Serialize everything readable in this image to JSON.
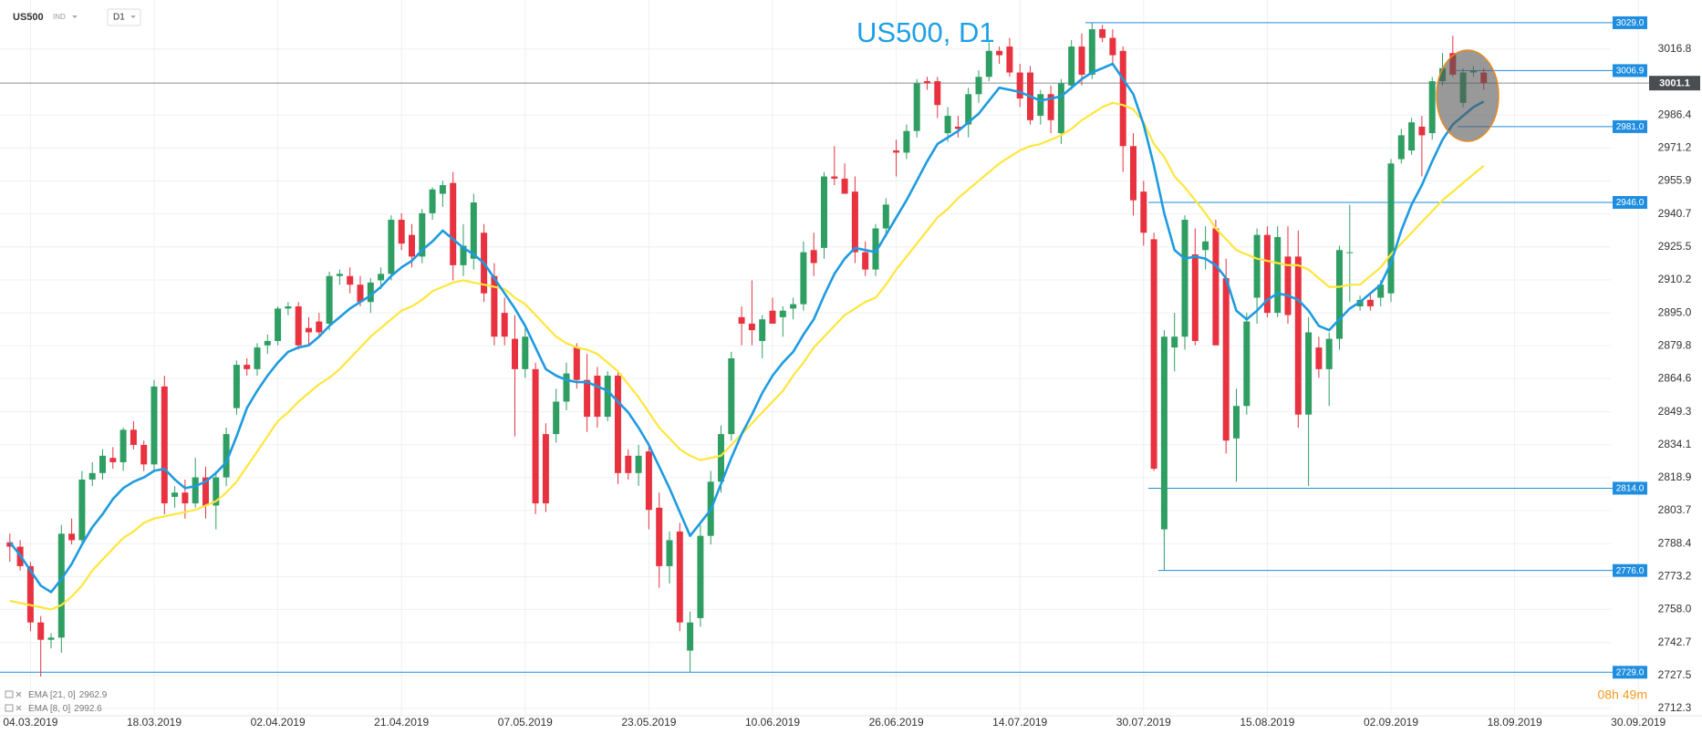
{
  "toolbar": {
    "symbol": "US500",
    "market": "IND",
    "interval": "D1"
  },
  "chart_data": {
    "type": "candlestick",
    "title": "US500, D1",
    "categories": [
      null,
      null,
      "04.03.2019",
      null,
      null,
      null,
      null,
      null,
      null,
      null,
      null,
      null,
      null,
      null,
      "18.03.2019",
      null,
      null,
      null,
      null,
      null,
      null,
      null,
      null,
      null,
      null,
      null,
      "02.04.2019",
      null,
      null,
      null,
      null,
      null,
      null,
      null,
      null,
      null,
      null,
      null,
      "21.04.2019",
      null,
      null,
      null,
      null,
      null,
      null,
      null,
      null,
      null,
      null,
      null,
      "07.05.2019",
      null,
      null,
      null,
      null,
      null,
      null,
      null,
      null,
      null,
      null,
      null,
      "23.05.2019",
      null,
      null,
      null,
      null,
      null,
      null,
      null,
      null,
      null,
      null,
      null,
      "10.06.2019",
      null,
      null,
      null,
      null,
      null,
      null,
      null,
      null,
      null,
      null,
      null,
      "26.06.2019",
      null,
      null,
      null,
      null,
      null,
      null,
      null,
      null,
      null,
      null,
      null,
      "14.07.2019",
      null,
      null,
      null,
      null,
      null,
      null,
      null,
      null,
      null,
      null,
      null,
      "30.07.2019",
      null,
      null,
      null,
      null,
      null,
      null,
      null,
      null,
      null,
      null,
      null,
      "15.08.2019",
      null,
      null,
      null,
      null,
      null,
      null,
      null,
      null,
      null,
      null,
      null,
      "02.09.2019",
      null,
      null,
      null,
      null,
      null,
      null,
      null,
      null,
      null,
      null,
      null,
      "18.09.2019",
      null,
      null,
      null,
      null,
      null,
      null,
      null,
      null,
      null,
      null,
      null,
      "30.09.2019"
    ],
    "open": [
      2789,
      2787,
      2778,
      2752,
      2744,
      2745,
      2793,
      2790,
      2818,
      2821,
      2828,
      2826,
      2841,
      2834,
      2825,
      2861,
      2810,
      2812,
      2807,
      2819,
      2806,
      2819,
      2851,
      2871,
      2869,
      2880,
      2882,
      2897,
      2898,
      2888,
      2891,
      2890,
      2912,
      2912,
      2908,
      2900,
      2910,
      2913,
      2938,
      2931,
      2921,
      2941,
      2950,
      2955,
      2917,
      2920,
      2932,
      2912,
      2895,
      2883,
      2869,
      2869,
      2839,
      2839,
      2854,
      2879,
      2864,
      2866,
      2847,
      2866,
      2829,
      2821,
      2831,
      2805,
      2778,
      2794,
      2739,
      2754,
      2792,
      2817,
      2839,
      2893,
      2890,
      2882,
      2896,
      2893,
      2897,
      2899,
      2924,
      2925,
      2958,
      2957,
      2951,
      2923,
      2915,
      2934,
      2970,
      2969,
      2979,
      3002,
      3002,
      2978,
      2981,
      2982,
      2996,
      3004,
      3016,
      3018,
      3006,
      3006,
      2986,
      2996,
      2978,
      3000,
      3018,
      3005,
      3026,
      3022,
      3016,
      2972,
      2951,
      2929,
      2795,
      2879,
      2884,
      2922,
      2924,
      2934,
      2911,
      2837,
      2852,
      2902,
      2931,
      2895,
      2921,
      2921,
      2848,
      2879,
      2869,
      2883,
      2923,
      2898,
      2901,
      2902,
      2904,
      2966,
      2970,
      2981,
      2978,
      3002,
      3015,
      2992,
      3006,
      3006,
      null,
      null,
      null,
      null,
      null,
      null,
      null,
      null,
      null,
      null,
      null,
      null,
      null,
      null,
      null
    ],
    "high": [
      2793,
      2790,
      2780,
      2755,
      2747,
      2797,
      2800,
      2822,
      2826,
      2832,
      2833,
      2842,
      2845,
      2836,
      2864,
      2866,
      2815,
      2818,
      2828,
      2824,
      2822,
      2842,
      2873,
      2874,
      2881,
      2885,
      2898,
      2900,
      2900,
      2893,
      2895,
      2914,
      2915,
      2916,
      2912,
      2911,
      2916,
      2940,
      2941,
      2936,
      2943,
      2953,
      2956,
      2960,
      2936,
      2950,
      2936,
      2918,
      2902,
      2894,
      2890,
      2872,
      2844,
      2860,
      2872,
      2881,
      2876,
      2870,
      2868,
      2868,
      2832,
      2834,
      2835,
      2812,
      2794,
      2798,
      2757,
      2797,
      2822,
      2843,
      2877,
      2898,
      2910,
      2894,
      2902,
      2898,
      2902,
      2928,
      2932,
      2960,
      2972,
      2964,
      2958,
      2928,
      2936,
      2948,
      2975,
      2982,
      3003,
      3004,
      3004,
      2990,
      2986,
      2999,
      3007,
      3020,
      3018,
      3022,
      3010,
      3009,
      2998,
      3000,
      3003,
      3021,
      3024,
      3029,
      3028,
      3026,
      3018,
      2978,
      2956,
      2932,
      2887,
      2895,
      2940,
      2934,
      2935,
      2938,
      2920,
      2860,
      2895,
      2934,
      2935,
      2935,
      2935,
      2933,
      2893,
      2884,
      2886,
      2926,
      2945,
      2903,
      2904,
      2910,
      2966,
      2980,
      2985,
      2986,
      3004,
      3015,
      3023,
      3008,
      3009,
      3008,
      null,
      null,
      null,
      null,
      null,
      null,
      null,
      null,
      null,
      null,
      null,
      null,
      null,
      null,
      null
    ],
    "low": [
      2780,
      2776,
      2748,
      2727,
      2740,
      2738,
      2788,
      2788,
      2815,
      2818,
      2823,
      2822,
      2832,
      2822,
      2822,
      2802,
      2805,
      2800,
      2805,
      2800,
      2795,
      2815,
      2848,
      2866,
      2866,
      2876,
      2880,
      2894,
      2878,
      2880,
      2884,
      2887,
      2908,
      2904,
      2898,
      2895,
      2906,
      2910,
      2924,
      2916,
      2918,
      2938,
      2944,
      2910,
      2912,
      2915,
      2900,
      2880,
      2880,
      2838,
      2865,
      2802,
      2803,
      2835,
      2850,
      2860,
      2840,
      2842,
      2845,
      2816,
      2818,
      2815,
      2795,
      2768,
      2770,
      2748,
      2729,
      2750,
      2788,
      2812,
      2836,
      2880,
      2880,
      2874,
      2890,
      2884,
      2892,
      2896,
      2912,
      2920,
      2954,
      2950,
      2918,
      2912,
      2912,
      2930,
      2958,
      2966,
      2976,
      2998,
      2985,
      2974,
      2976,
      2976,
      2992,
      3002,
      3010,
      3004,
      2990,
      2982,
      2982,
      2978,
      2973,
      2998,
      3000,
      3003,
      3020,
      3010,
      2960,
      2940,
      2926,
      2822,
      2776,
      2868,
      2878,
      2880,
      2915,
      2880,
      2830,
      2817,
      2848,
      2890,
      2893,
      2893,
      2890,
      2842,
      2815,
      2865,
      2852,
      2878,
      2900,
      2896,
      2896,
      2898,
      2900,
      2964,
      2968,
      2958,
      2975,
      3000,
      3004,
      2990,
      3004,
      2998,
      null,
      null,
      null,
      null,
      null,
      null,
      null,
      null,
      null,
      null,
      null,
      null,
      null,
      null,
      null
    ],
    "close": [
      2787,
      2778,
      2752,
      2744,
      2745,
      2793,
      2790,
      2818,
      2821,
      2829,
      2826,
      2841,
      2834,
      2825,
      2861,
      2807,
      2812,
      2807,
      2819,
      2806,
      2819,
      2839,
      2871,
      2869,
      2879,
      2882,
      2897,
      2898,
      2880,
      2886,
      2886,
      2912,
      2913,
      2908,
      2900,
      2909,
      2913,
      2938,
      2927,
      2921,
      2941,
      2952,
      2954,
      2917,
      2926,
      2946,
      2904,
      2884,
      2884,
      2869,
      2884,
      2807,
      2807,
      2854,
      2867,
      2864,
      2847,
      2847,
      2866,
      2821,
      2821,
      2829,
      2804,
      2778,
      2790,
      2752,
      2752,
      2792,
      2817,
      2839,
      2874,
      2890,
      2887,
      2892,
      2890,
      2896,
      2899,
      2923,
      2918,
      2958,
      2957,
      2950,
      2923,
      2915,
      2934,
      2945,
      2969,
      2979,
      3001,
      3001,
      2991,
      2986,
      2980,
      2996,
      3004,
      3016,
      3014,
      3006,
      2994,
      2984,
      2996,
      2984,
      3001,
      3018,
      3005,
      3026,
      3022,
      3014,
      2972,
      2947,
      2932,
      2823,
      2884,
      2884,
      2938,
      2882,
      2928,
      2880,
      2836,
      2852,
      2891,
      2931,
      2895,
      2930,
      2894,
      2848,
      2886,
      2869,
      2883,
      2924,
      2923,
      2901,
      2898,
      2908,
      2964,
      2977,
      2983,
      2977,
      3002,
      3008,
      3005,
      3006,
      3007,
      3001.1,
      null,
      null,
      null,
      null,
      null,
      null,
      null,
      null,
      null,
      null,
      null,
      null,
      null,
      null,
      null
    ],
    "up_color": "#2f9e62",
    "down_color": "#e8323f",
    "series": [
      {
        "name": "EMA [21, 0]",
        "color": "#ffe63b",
        "values": [
          2762,
          2761,
          2760,
          2759,
          2758,
          2760,
          2764,
          2769,
          2776,
          2781,
          2786,
          2791,
          2794,
          2798,
          2800,
          2801,
          2802,
          2803,
          2804,
          2806,
          2808,
          2812,
          2817,
          2824,
          2831,
          2838,
          2845,
          2849,
          2854,
          2858,
          2862,
          2865,
          2869,
          2874,
          2879,
          2884,
          2888,
          2892,
          2896,
          2898,
          2901,
          2905,
          2907,
          2909,
          2910,
          2909,
          2908,
          2907,
          2906,
          2902,
          2899,
          2894,
          2889,
          2884,
          2881,
          2879,
          2878,
          2876,
          2872,
          2868,
          2862,
          2856,
          2849,
          2842,
          2837,
          2832,
          2829,
          2827,
          2828,
          2829,
          2834,
          2839,
          2844,
          2849,
          2854,
          2859,
          2866,
          2872,
          2879,
          2884,
          2889,
          2894,
          2897,
          2900,
          2902,
          2908,
          2915,
          2921,
          2927,
          2933,
          2939,
          2943,
          2948,
          2952,
          2956,
          2960,
          2964,
          2967,
          2970,
          2972,
          2973,
          2975,
          2977,
          2980,
          2984,
          2987,
          2990,
          2992,
          2991,
          2989,
          2983,
          2973,
          2967,
          2958,
          2953,
          2947,
          2941,
          2934,
          2929,
          2924,
          2922,
          2920,
          2919,
          2918,
          2917,
          2917,
          2915,
          2911,
          2907,
          2907,
          2908,
          2908,
          2912,
          2916,
          2922,
          2927,
          2932,
          2937,
          2942,
          2947,
          2951,
          2955,
          2959,
          2962.9,
          null,
          null,
          null,
          null,
          null,
          null,
          null,
          null,
          null,
          null,
          null,
          null,
          null,
          null,
          null
        ]
      },
      {
        "name": "EMA [8, 0]",
        "color": "#1e9be0",
        "values": [
          2789,
          2783,
          2776,
          2769,
          2766,
          2772,
          2779,
          2788,
          2796,
          2802,
          2809,
          2814,
          2817,
          2819,
          2822,
          2823,
          2818,
          2814,
          2815,
          2817,
          2821,
          2826,
          2838,
          2851,
          2859,
          2866,
          2872,
          2877,
          2879,
          2880,
          2884,
          2889,
          2893,
          2897,
          2900,
          2903,
          2907,
          2912,
          2916,
          2919,
          2924,
          2928,
          2933,
          2929,
          2925,
          2922,
          2918,
          2911,
          2904,
          2897,
          2889,
          2879,
          2869,
          2866,
          2864,
          2863,
          2863,
          2861,
          2859,
          2854,
          2849,
          2842,
          2834,
          2824,
          2814,
          2803,
          2792,
          2798,
          2804,
          2816,
          2828,
          2839,
          2848,
          2858,
          2866,
          2872,
          2877,
          2885,
          2892,
          2903,
          2913,
          2920,
          2925,
          2924,
          2923,
          2931,
          2939,
          2947,
          2956,
          2965,
          2973,
          2976,
          2979,
          2983,
          2987,
          2993,
          2999,
          2998,
          2997,
          2995,
          2993,
          2994,
          2995,
          2999,
          3003,
          3006,
          3008,
          3010,
          3003,
          2996,
          2982,
          2963,
          2941,
          2924,
          2920,
          2921,
          2920,
          2917,
          2911,
          2896,
          2892,
          2896,
          2901,
          2904,
          2903,
          2901,
          2896,
          2889,
          2887,
          2892,
          2897,
          2900,
          2904,
          2908,
          2918,
          2933,
          2945,
          2954,
          2965,
          2975,
          2982,
          2986,
          2990,
          2992.6,
          null,
          null,
          null,
          null,
          null,
          null,
          null,
          null,
          null,
          null,
          null,
          null,
          null,
          null,
          null
        ]
      }
    ],
    "ylim": [
      2708.9,
      3039.5
    ],
    "yticks": [
      3016.8,
      2986.4,
      2971.2,
      2955.9,
      2940.7,
      2925.5,
      2910.2,
      {
        "value": 2895,
        "label": "2895.0"
      },
      2879.8,
      2864.6,
      2849.3,
      2834.1,
      2818.9,
      2803.7,
      2788.4,
      2773.2,
      {
        "value": 2758,
        "label": "2758.0"
      },
      2742.7,
      2727.5,
      2712.3
    ],
    "grid": true,
    "levels": [
      {
        "value": 3029,
        "label": "3029.0"
      },
      3006.9,
      {
        "value": 2981,
        "label": "2981.0"
      },
      {
        "value": 2946,
        "label": "2946.0"
      },
      {
        "value": 2814,
        "label": "2814.0"
      },
      {
        "value": 2776,
        "label": "2776.0"
      },
      {
        "value": 2729,
        "label": "2729.0"
      }
    ],
    "level_color": "#1f8ee0",
    "current_price": 3001.1,
    "countdown": "08h 49m"
  }
}
